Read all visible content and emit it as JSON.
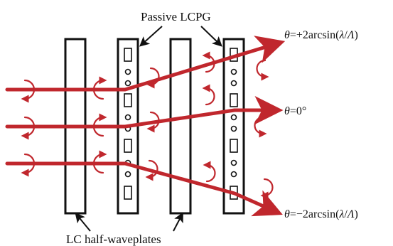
{
  "labels": {
    "passive_lcpg": "Passive LCPG",
    "lc_half_waveplates": "LC half-waveplates",
    "theta_sym": "θ",
    "out_top": {
      "rel": "=+2arcsin(",
      "lam": "λ",
      "slash": "/",
      "Lam": "Λ",
      "close": ")"
    },
    "out_mid": {
      "rel": "=0°"
    },
    "out_bot": {
      "rel": "=−2arcsin(",
      "lam": "λ",
      "slash": "/",
      "Lam": "Λ",
      "close": ")"
    }
  },
  "colors": {
    "beam": "#c0272d",
    "plate_stroke": "#111111",
    "plate_fill": "#ffffff",
    "text": "#111111"
  },
  "icons": {
    "beam_polarization": "circular-arrow-icon",
    "pointer": "pointer-arrow-icon"
  }
}
